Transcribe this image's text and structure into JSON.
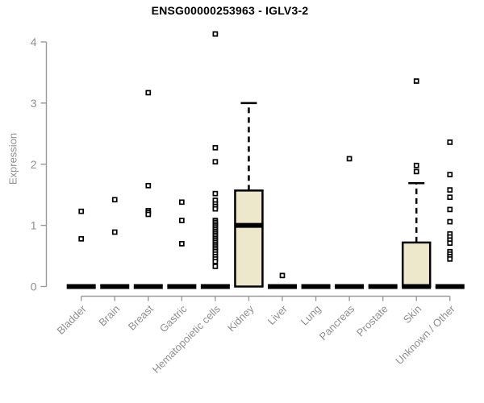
{
  "window": {
    "title": "ENSG00000253963 - IGLV3-2"
  },
  "chart_data": {
    "type": "boxplot",
    "title": "ENSG00000253963 - IGLV3-2",
    "xlabel": "",
    "ylabel": "Expression",
    "ylim": [
      0,
      4
    ],
    "yticks": [
      0,
      1,
      2,
      3,
      4
    ],
    "grid": false,
    "legend": "none",
    "categories": [
      "Bladder",
      "Brain",
      "Breast",
      "Gastric",
      "Hematopoietic cells",
      "Kidney",
      "Liver",
      "Lung",
      "Pancreas",
      "Prostate",
      "Skin",
      "Unknown / Other"
    ],
    "boxes": [
      {
        "category": "Bladder",
        "q1": 0,
        "median": 0,
        "q3": 0,
        "whisker_high": 0,
        "outliers": [
          1.23,
          0.78
        ]
      },
      {
        "category": "Brain",
        "q1": 0,
        "median": 0,
        "q3": 0,
        "whisker_high": 0,
        "outliers": [
          1.42,
          0.89
        ]
      },
      {
        "category": "Breast",
        "q1": 0,
        "median": 0,
        "q3": 0,
        "whisker_high": 0,
        "outliers": [
          3.17,
          1.65,
          1.24,
          1.21,
          1.18
        ]
      },
      {
        "category": "Gastric",
        "q1": 0,
        "median": 0,
        "q3": 0,
        "whisker_high": 0,
        "outliers": [
          1.38,
          1.08,
          0.7
        ]
      },
      {
        "category": "Hematopoietic cells",
        "q1": 0,
        "median": 0,
        "q3": 0,
        "whisker_high": 0,
        "outliers": [
          4.13,
          2.27,
          2.04,
          1.52,
          1.41,
          1.35,
          1.31,
          1.27,
          1.08,
          1.05,
          1.02,
          0.99,
          0.96,
          0.93,
          0.9,
          0.87,
          0.84,
          0.81,
          0.78,
          0.75,
          0.72,
          0.69,
          0.66,
          0.63,
          0.6,
          0.57,
          0.53,
          0.49,
          0.45,
          0.41,
          0.33
        ]
      },
      {
        "category": "Kidney",
        "q1": 0,
        "median": 1.0,
        "q3": 1.57,
        "whisker_high": 3.0,
        "outliers": []
      },
      {
        "category": "Liver",
        "q1": 0,
        "median": 0,
        "q3": 0,
        "whisker_high": 0,
        "outliers": [
          0.18
        ]
      },
      {
        "category": "Lung",
        "q1": 0,
        "median": 0,
        "q3": 0,
        "whisker_high": 0,
        "outliers": []
      },
      {
        "category": "Pancreas",
        "q1": 0,
        "median": 0,
        "q3": 0,
        "whisker_high": 0,
        "outliers": [
          2.09
        ]
      },
      {
        "category": "Prostate",
        "q1": 0,
        "median": 0,
        "q3": 0,
        "whisker_high": 0,
        "outliers": []
      },
      {
        "category": "Skin",
        "q1": 0,
        "median": 0,
        "q3": 0.72,
        "whisker_high": 1.69,
        "outliers": [
          3.36,
          1.98,
          1.88
        ]
      },
      {
        "category": "Unknown / Other",
        "q1": 0,
        "median": 0,
        "q3": 0,
        "whisker_high": 0,
        "outliers": [
          2.36,
          1.83,
          1.58,
          1.46,
          1.26,
          1.06,
          0.86,
          0.81,
          0.76,
          0.71,
          0.57,
          0.53,
          0.49,
          0.45
        ]
      }
    ],
    "colors": {
      "box_fill": "#EDE7CC",
      "box_stroke": "#000000",
      "median": "#000000",
      "outlier_fill": "#FFFFFF",
      "outlier_stroke": "#000000",
      "axis_line": "#9A9A9A",
      "axis_text": "#8F8F8F",
      "title_text": "#000000",
      "background": "#FFFFFF"
    }
  }
}
